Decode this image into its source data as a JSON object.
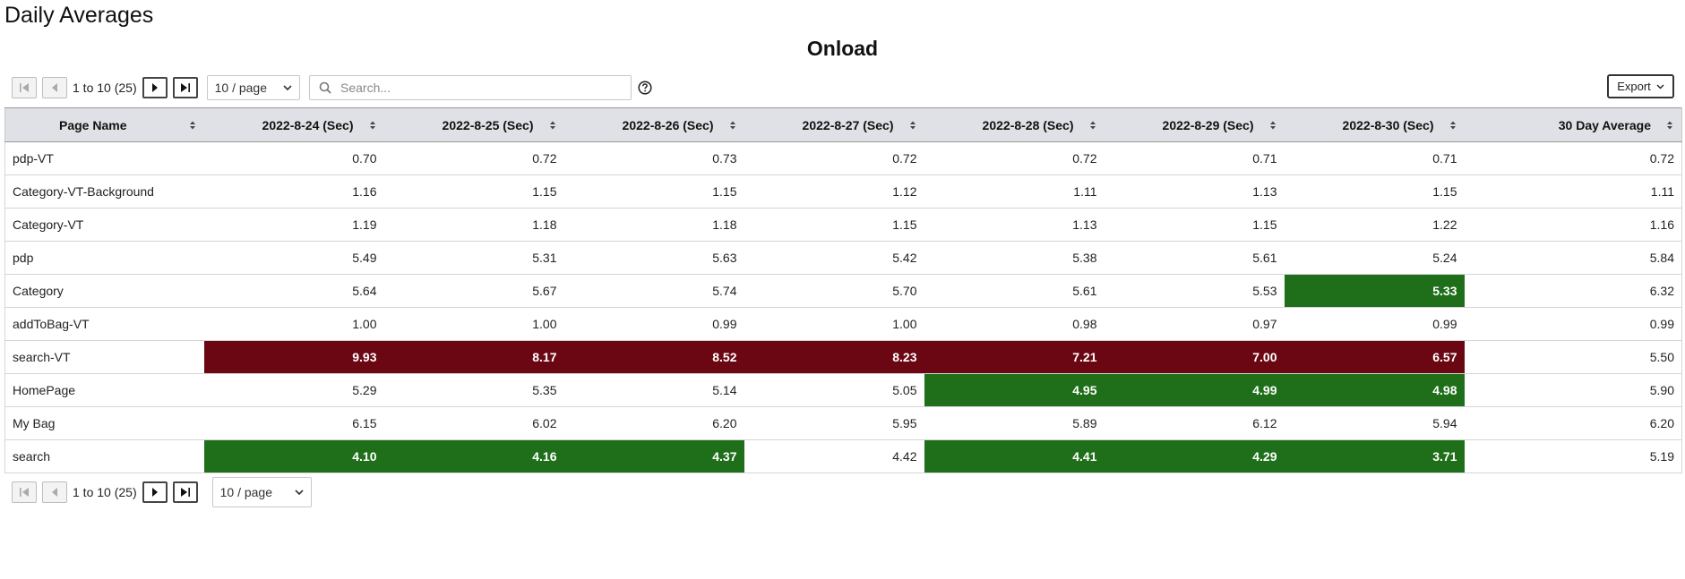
{
  "page_title": "Daily Averages",
  "grid_title": "Onload",
  "pagination": {
    "range_text": "1 to 10 (25)",
    "page_size": "10 / page"
  },
  "search": {
    "placeholder": "Search..."
  },
  "export_label": "Export",
  "table": {
    "columns": [
      "Page Name",
      "2022-8-24 (Sec)",
      "2022-8-25 (Sec)",
      "2022-8-26 (Sec)",
      "2022-8-27 (Sec)",
      "2022-8-28 (Sec)",
      "2022-8-29 (Sec)",
      "2022-8-30 (Sec)",
      "30 Day Average"
    ],
    "rows": [
      {
        "name": "pdp-VT",
        "values": [
          "0.70",
          "0.72",
          "0.73",
          "0.72",
          "0.72",
          "0.71",
          "0.71",
          "0.72"
        ],
        "status": [
          "",
          "",
          "",
          "",
          "",
          "",
          "",
          ""
        ]
      },
      {
        "name": "Category-VT-Background",
        "values": [
          "1.16",
          "1.15",
          "1.15",
          "1.12",
          "1.11",
          "1.13",
          "1.15",
          "1.11"
        ],
        "status": [
          "",
          "",
          "",
          "",
          "",
          "",
          "",
          ""
        ]
      },
      {
        "name": "Category-VT",
        "values": [
          "1.19",
          "1.18",
          "1.18",
          "1.15",
          "1.13",
          "1.15",
          "1.22",
          "1.16"
        ],
        "status": [
          "",
          "",
          "",
          "",
          "",
          "",
          "",
          ""
        ]
      },
      {
        "name": "pdp",
        "values": [
          "5.49",
          "5.31",
          "5.63",
          "5.42",
          "5.38",
          "5.61",
          "5.24",
          "5.84"
        ],
        "status": [
          "",
          "",
          "",
          "",
          "",
          "",
          "",
          ""
        ]
      },
      {
        "name": "Category",
        "values": [
          "5.64",
          "5.67",
          "5.74",
          "5.70",
          "5.61",
          "5.53",
          "5.33",
          "6.32"
        ],
        "status": [
          "",
          "",
          "",
          "",
          "",
          "",
          "good",
          ""
        ]
      },
      {
        "name": "addToBag-VT",
        "values": [
          "1.00",
          "1.00",
          "0.99",
          "1.00",
          "0.98",
          "0.97",
          "0.99",
          "0.99"
        ],
        "status": [
          "",
          "",
          "",
          "",
          "",
          "",
          "",
          ""
        ]
      },
      {
        "name": "search-VT",
        "values": [
          "9.93",
          "8.17",
          "8.52",
          "8.23",
          "7.21",
          "7.00",
          "6.57",
          "5.50"
        ],
        "status": [
          "bad",
          "bad",
          "bad",
          "bad",
          "bad",
          "bad",
          "bad",
          ""
        ]
      },
      {
        "name": "HomePage",
        "values": [
          "5.29",
          "5.35",
          "5.14",
          "5.05",
          "4.95",
          "4.99",
          "4.98",
          "5.90"
        ],
        "status": [
          "",
          "",
          "",
          "",
          "good",
          "good",
          "good",
          ""
        ]
      },
      {
        "name": "My Bag",
        "values": [
          "6.15",
          "6.02",
          "6.20",
          "5.95",
          "5.89",
          "6.12",
          "5.94",
          "6.20"
        ],
        "status": [
          "",
          "",
          "",
          "",
          "",
          "",
          "",
          ""
        ]
      },
      {
        "name": "search",
        "values": [
          "4.10",
          "4.16",
          "4.37",
          "4.42",
          "4.41",
          "4.29",
          "3.71",
          "5.19"
        ],
        "status": [
          "good",
          "good",
          "good",
          "",
          "good",
          "good",
          "good",
          ""
        ]
      }
    ]
  },
  "colors": {
    "good": "#1f6f1a",
    "bad": "#6b0713",
    "header_bg": "#dfe1e6"
  }
}
